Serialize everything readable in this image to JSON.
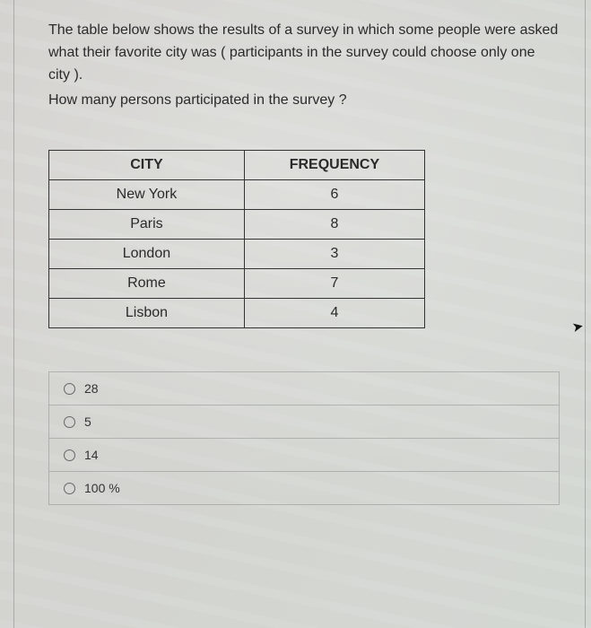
{
  "question": {
    "para1": "The table below shows the results of a survey in which some people were asked what their favorite city was ( participants in the survey could choose only one city ).",
    "para2": "How many persons participated in the survey ?"
  },
  "table": {
    "headers": {
      "city": "CITY",
      "freq": "FREQUENCY"
    },
    "rows": [
      {
        "city": "New York",
        "freq": "6"
      },
      {
        "city": "Paris",
        "freq": "8"
      },
      {
        "city": "London",
        "freq": "3"
      },
      {
        "city": "Rome",
        "freq": "7"
      },
      {
        "city": "Lisbon",
        "freq": "4"
      }
    ]
  },
  "options": [
    {
      "label": "28"
    },
    {
      "label": "5"
    },
    {
      "label": "14"
    },
    {
      "label": "100 %"
    }
  ]
}
